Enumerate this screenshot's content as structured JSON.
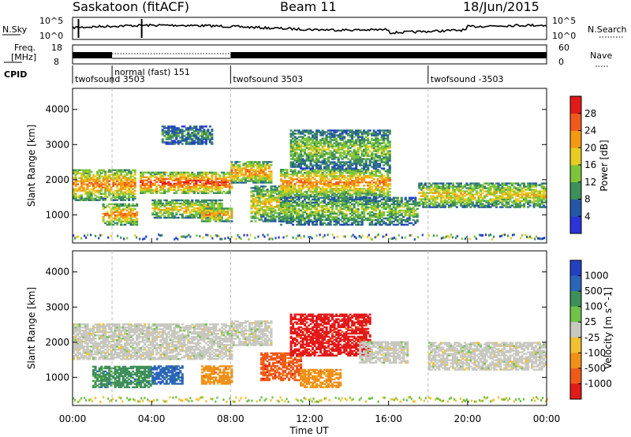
{
  "header": {
    "station": "Saskatoon (fitACF)",
    "beam": "Beam 11",
    "date": "18/Jun/2015"
  },
  "nsky_panel": {
    "left_label": "N.Sky",
    "right_label": "N.Search",
    "left_ticks": [
      "10^5",
      "10^0"
    ],
    "right_ticks": [
      "10^5",
      "10^0"
    ]
  },
  "freq_panel": {
    "left_label_1": "Freq.",
    "left_label_2": "[MHz]",
    "right_label": "Nave",
    "left_ticks": [
      "18",
      "8"
    ],
    "right_ticks": [
      "60",
      "0"
    ]
  },
  "cpid": {
    "label": "CPID",
    "modes": [
      {
        "name": "twofsound 3503",
        "start_h": 0
      },
      {
        "name": "normal (fast) 151",
        "start_h": 2.0
      },
      {
        "name": "twofsound 3503",
        "start_h": 8.0
      },
      {
        "name": "twofsound -3503",
        "start_h": 18.0
      }
    ]
  },
  "chart_data": [
    {
      "type": "heatmap",
      "name": "power",
      "ylabel": "Slant Range [km]",
      "yticks": [
        "1000",
        "2000",
        "3000",
        "4000"
      ],
      "ylim": [
        200,
        4600
      ],
      "xlim": [
        0,
        24
      ],
      "colorbar_label": "Power [dB]",
      "colorbar_ticks": [
        "4",
        "8",
        "12",
        "16",
        "20",
        "24",
        "28"
      ],
      "colorbar_colors": [
        "#2a34d8",
        "#2557a8",
        "#3e8f5a",
        "#7cc53a",
        "#e6cd20",
        "#f39a12",
        "#ef5a1a",
        "#e21a1a"
      ],
      "bands": [
        {
          "t0": 0.0,
          "t1": 3.2,
          "r0": 1400,
          "r1": 2300,
          "level": 5
        },
        {
          "t0": 1.5,
          "t1": 3.3,
          "r0": 700,
          "r1": 1300,
          "level": 5
        },
        {
          "t0": 3.4,
          "t1": 8.0,
          "r0": 1600,
          "r1": 2200,
          "level": 6
        },
        {
          "t0": 4.0,
          "t1": 7.5,
          "r0": 900,
          "r1": 1400,
          "level": 4
        },
        {
          "t0": 6.5,
          "t1": 8.0,
          "r0": 800,
          "r1": 1200,
          "level": 5
        },
        {
          "t0": 8.0,
          "t1": 10.0,
          "r0": 1900,
          "r1": 2500,
          "level": 5
        },
        {
          "t0": 9.0,
          "t1": 11.0,
          "r0": 800,
          "r1": 1800,
          "level": 4
        },
        {
          "t0": 10.5,
          "t1": 16.0,
          "r0": 1500,
          "r1": 2300,
          "level": 5
        },
        {
          "t0": 11.0,
          "t1": 16.0,
          "r0": 2300,
          "r1": 3400,
          "level": 3
        },
        {
          "t0": 10.5,
          "t1": 17.5,
          "r0": 700,
          "r1": 1500,
          "level": 3
        },
        {
          "t0": 17.5,
          "t1": 24.0,
          "r0": 1200,
          "r1": 1900,
          "level": 4
        },
        {
          "t0": 4.5,
          "t1": 7.0,
          "r0": 3000,
          "r1": 3500,
          "level": 2
        }
      ]
    },
    {
      "type": "heatmap",
      "name": "velocity",
      "ylabel": "Slant Range [km]",
      "yticks": [
        "1000",
        "2000",
        "3000",
        "4000"
      ],
      "ylim": [
        200,
        4600
      ],
      "xlim": [
        0,
        24
      ],
      "xlabel": "Time UT",
      "xticks": [
        "00:00",
        "04:00",
        "08:00",
        "12:00",
        "16:00",
        "20:00",
        "00:00"
      ],
      "colorbar_label": "Velocity [m s^-1]",
      "colorbar_ticks": [
        "1000",
        "500",
        "100",
        "25",
        "-25",
        "-100",
        "-500",
        "-1000"
      ],
      "colorbar_colors": [
        "#2340c0",
        "#2a66b8",
        "#3e8f5a",
        "#70c24a",
        "#c8c8c0",
        "#f0c030",
        "#f09018",
        "#ef5a1a",
        "#e21a1a"
      ],
      "bands": [
        {
          "t0": 0.0,
          "t1": 8.0,
          "r0": 1500,
          "r1": 2500,
          "color": 4
        },
        {
          "t0": 1.0,
          "t1": 4.0,
          "r0": 700,
          "r1": 1300,
          "color": 2
        },
        {
          "t0": 4.0,
          "t1": 5.5,
          "r0": 800,
          "r1": 1300,
          "color": 1
        },
        {
          "t0": 6.5,
          "t1": 8.0,
          "r0": 800,
          "r1": 1300,
          "color": 6
        },
        {
          "t0": 8.0,
          "t1": 10.0,
          "r0": 1900,
          "r1": 2600,
          "color": 4
        },
        {
          "t0": 9.5,
          "t1": 11.5,
          "r0": 900,
          "r1": 1700,
          "color": 7
        },
        {
          "t0": 11.0,
          "t1": 15.0,
          "r0": 1600,
          "r1": 2800,
          "color": 8
        },
        {
          "t0": 11.5,
          "t1": 13.5,
          "r0": 700,
          "r1": 1200,
          "color": 6
        },
        {
          "t0": 14.5,
          "t1": 17.0,
          "r0": 1400,
          "r1": 2000,
          "color": 4
        },
        {
          "t0": 18.0,
          "t1": 24.0,
          "r0": 1200,
          "r1": 2000,
          "color": 4
        }
      ]
    }
  ]
}
